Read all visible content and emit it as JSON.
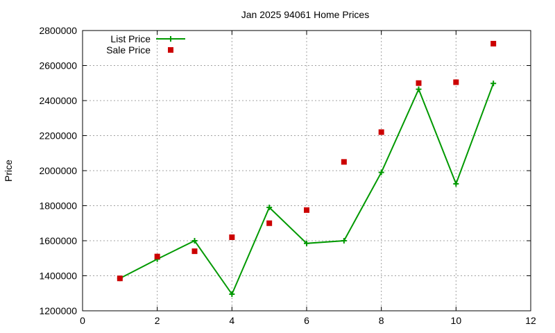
{
  "chart_data": {
    "type": "line",
    "title": "Jan 2025 94061 Home Prices",
    "xlabel": "",
    "ylabel": "Price",
    "xlim": [
      0,
      12
    ],
    "ylim": [
      1200000,
      2800000
    ],
    "x_ticks": [
      "0",
      "2",
      "4",
      "6",
      "8",
      "10",
      "12"
    ],
    "x_tick_values": [
      0,
      2,
      4,
      6,
      8,
      10,
      12
    ],
    "y_ticks": [
      "1200000",
      "1400000",
      "1600000",
      "1800000",
      "2000000",
      "2200000",
      "2400000",
      "2600000",
      "2800000"
    ],
    "y_tick_values": [
      1200000,
      1400000,
      1600000,
      1800000,
      2000000,
      2200000,
      2400000,
      2600000,
      2800000
    ],
    "grid": true,
    "legend_position": "top-left",
    "series": [
      {
        "name": "List Price",
        "style": "lines+points",
        "marker": "plus",
        "color": "#009900",
        "x": [
          1,
          2,
          3,
          4,
          5,
          6,
          7,
          8,
          9,
          10,
          11
        ],
        "y": [
          1385000,
          1495000,
          1600000,
          1295000,
          1790000,
          1585000,
          1600000,
          1990000,
          2465000,
          1925000,
          2498000
        ]
      },
      {
        "name": "Sale Price",
        "style": "points",
        "marker": "square",
        "color": "#cc0000",
        "x": [
          1,
          2,
          3,
          4,
          5,
          6,
          7,
          8,
          9,
          10,
          11
        ],
        "y": [
          1385000,
          1510000,
          1540000,
          1620000,
          1700000,
          1775000,
          2050000,
          2220000,
          2500000,
          2505000,
          2725000
        ]
      }
    ]
  }
}
